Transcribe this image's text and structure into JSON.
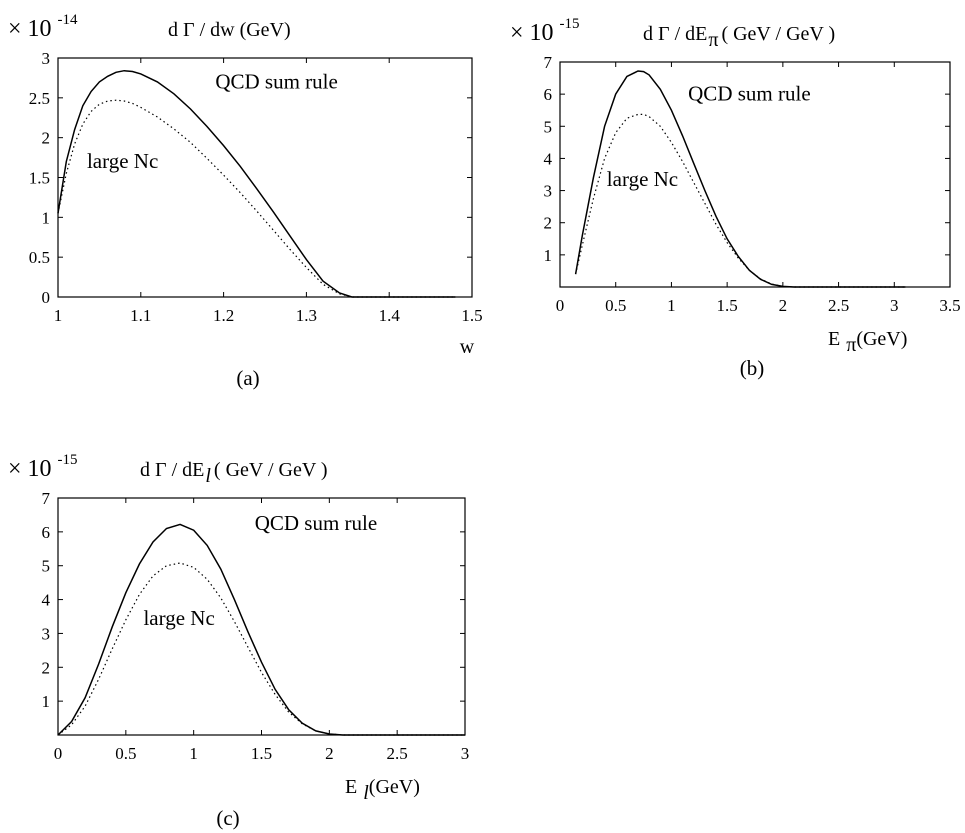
{
  "chart_data": [
    {
      "id": "a",
      "type": "line",
      "panel_label": "(a)",
      "multiplier": {
        "base": "× 10",
        "exponent": "-14"
      },
      "title": "d Γ / dw  (GeV)",
      "xlabel": "w",
      "xlabel_sub": "",
      "xlim": [
        1,
        1.5
      ],
      "ylim": [
        0,
        3
      ],
      "xticks": [
        1,
        1.1,
        1.2,
        1.3,
        1.4,
        1.5
      ],
      "xtick_labels": [
        "1",
        "1.1",
        "1.2",
        "1.3",
        "1.4",
        "1.5"
      ],
      "yticks": [
        0,
        0.5,
        1,
        1.5,
        2,
        2.5,
        3
      ],
      "ytick_labels": [
        "0",
        "0.5",
        "1",
        "1.5",
        "2",
        "2.5",
        "3"
      ],
      "series": [
        {
          "name": "QCD sum rule",
          "style": "solid",
          "x": [
            1.0,
            1.01,
            1.02,
            1.03,
            1.04,
            1.05,
            1.06,
            1.07,
            1.08,
            1.09,
            1.1,
            1.12,
            1.14,
            1.16,
            1.18,
            1.2,
            1.22,
            1.24,
            1.26,
            1.28,
            1.3,
            1.32,
            1.34,
            1.355,
            1.36,
            1.4,
            1.45,
            1.48
          ],
          "y": [
            1.05,
            1.7,
            2.1,
            2.4,
            2.58,
            2.7,
            2.77,
            2.82,
            2.84,
            2.83,
            2.8,
            2.7,
            2.55,
            2.36,
            2.14,
            1.9,
            1.64,
            1.36,
            1.07,
            0.77,
            0.47,
            0.2,
            0.05,
            0.0,
            0.0,
            0.0,
            0.0,
            0.0
          ]
        },
        {
          "name": "large Nc",
          "style": "dotted",
          "x": [
            1.0,
            1.01,
            1.02,
            1.03,
            1.04,
            1.05,
            1.06,
            1.07,
            1.08,
            1.09,
            1.1,
            1.12,
            1.14,
            1.16,
            1.18,
            1.2,
            1.22,
            1.24,
            1.26,
            1.28,
            1.3,
            1.32,
            1.34,
            1.355,
            1.36,
            1.4,
            1.45,
            1.48
          ],
          "y": [
            1.05,
            1.55,
            1.92,
            2.17,
            2.33,
            2.42,
            2.46,
            2.47,
            2.46,
            2.43,
            2.38,
            2.26,
            2.11,
            1.94,
            1.74,
            1.53,
            1.31,
            1.08,
            0.84,
            0.6,
            0.37,
            0.16,
            0.04,
            0.0,
            0.0,
            0.0,
            0.0,
            0.0
          ]
        }
      ],
      "annotations": [
        {
          "text": "QCD sum rule",
          "x": 1.19,
          "y": 2.62
        },
        {
          "text": "large Nc",
          "x": 1.035,
          "y": 1.62
        }
      ]
    },
    {
      "id": "b",
      "type": "line",
      "panel_label": "(b)",
      "multiplier": {
        "base": "× 10",
        "exponent": "-15"
      },
      "title": "d Γ / dE",
      "title_sub": "π",
      "title_suffix": " ( GeV / GeV )",
      "xlabel": "E",
      "xlabel_sub": "π",
      "xlabel_suffix": "  (GeV)",
      "xlim": [
        0,
        3.5
      ],
      "ylim": [
        0,
        7
      ],
      "xticks": [
        0,
        0.5,
        1,
        1.5,
        2,
        2.5,
        3,
        3.5
      ],
      "xtick_labels": [
        "0",
        "0.5",
        "1",
        "1.5",
        "2",
        "2.5",
        "3",
        "3.5"
      ],
      "yticks": [
        1,
        2,
        3,
        4,
        5,
        6,
        7
      ],
      "ytick_labels": [
        "1",
        "2",
        "3",
        "4",
        "5",
        "6",
        "7"
      ],
      "series": [
        {
          "name": "QCD sum rule",
          "style": "solid",
          "x": [
            0.14,
            0.2,
            0.3,
            0.4,
            0.5,
            0.6,
            0.7,
            0.75,
            0.8,
            0.9,
            1.0,
            1.1,
            1.2,
            1.3,
            1.4,
            1.5,
            1.6,
            1.7,
            1.8,
            1.9,
            2.0,
            2.1,
            2.3,
            2.6,
            3.0,
            3.1
          ],
          "y": [
            0.4,
            1.6,
            3.4,
            5.0,
            6.0,
            6.55,
            6.72,
            6.7,
            6.6,
            6.15,
            5.5,
            4.7,
            3.85,
            3.0,
            2.2,
            1.5,
            0.95,
            0.52,
            0.24,
            0.08,
            0.02,
            0.0,
            0.0,
            0.0,
            0.0,
            0.0
          ]
        },
        {
          "name": "large Nc",
          "style": "dotted",
          "x": [
            0.14,
            0.2,
            0.3,
            0.4,
            0.5,
            0.6,
            0.7,
            0.75,
            0.8,
            0.9,
            1.0,
            1.1,
            1.2,
            1.3,
            1.4,
            1.5,
            1.6,
            1.7,
            1.8,
            1.9,
            2.0,
            2.1,
            2.3,
            2.6,
            3.0,
            3.1
          ],
          "y": [
            0.4,
            1.3,
            2.75,
            4.0,
            4.8,
            5.25,
            5.37,
            5.37,
            5.3,
            5.0,
            4.5,
            3.9,
            3.25,
            2.6,
            1.95,
            1.38,
            0.9,
            0.52,
            0.25,
            0.09,
            0.02,
            0.0,
            0.0,
            0.0,
            0.0,
            0.0
          ]
        }
      ],
      "annotations": [
        {
          "text": "QCD sum rule",
          "x": 1.15,
          "y": 5.8
        },
        {
          "text": "large Nc",
          "x": 0.42,
          "y": 3.15
        }
      ]
    },
    {
      "id": "c",
      "type": "line",
      "panel_label": "(c)",
      "multiplier": {
        "base": "× 10",
        "exponent": "-15"
      },
      "title": "d Γ / dE",
      "title_sub": "l",
      "title_suffix": "  ( GeV / GeV )",
      "xlabel": "E",
      "xlabel_sub": "l",
      "xlabel_suffix": "  (GeV)",
      "xlim": [
        0,
        3
      ],
      "ylim": [
        0,
        7
      ],
      "xticks": [
        0,
        0.5,
        1,
        1.5,
        2,
        2.5,
        3
      ],
      "xtick_labels": [
        "0",
        "0.5",
        "1",
        "1.5",
        "2",
        "2.5",
        "3"
      ],
      "yticks": [
        1,
        2,
        3,
        4,
        5,
        6,
        7
      ],
      "ytick_labels": [
        "1",
        "2",
        "3",
        "4",
        "5",
        "6",
        "7"
      ],
      "series": [
        {
          "name": "QCD sum rule",
          "style": "solid",
          "x": [
            0.0,
            0.1,
            0.2,
            0.3,
            0.4,
            0.5,
            0.6,
            0.7,
            0.8,
            0.9,
            1.0,
            1.1,
            1.2,
            1.3,
            1.4,
            1.5,
            1.6,
            1.7,
            1.8,
            1.9,
            2.0,
            2.1,
            2.2,
            2.5,
            3.0
          ],
          "y": [
            0.0,
            0.4,
            1.1,
            2.1,
            3.2,
            4.2,
            5.05,
            5.7,
            6.1,
            6.22,
            6.05,
            5.6,
            4.9,
            4.0,
            3.05,
            2.15,
            1.35,
            0.75,
            0.35,
            0.12,
            0.03,
            0.0,
            0.0,
            0.0,
            0.0
          ]
        },
        {
          "name": "large Nc",
          "style": "dotted",
          "x": [
            0.0,
            0.1,
            0.2,
            0.3,
            0.4,
            0.5,
            0.6,
            0.7,
            0.8,
            0.9,
            1.0,
            1.1,
            1.2,
            1.3,
            1.4,
            1.5,
            1.6,
            1.7,
            1.8,
            1.9,
            2.0,
            2.1,
            2.2,
            2.5,
            3.0
          ],
          "y": [
            0.0,
            0.3,
            0.85,
            1.65,
            2.55,
            3.4,
            4.15,
            4.7,
            5.0,
            5.08,
            4.95,
            4.6,
            4.05,
            3.35,
            2.6,
            1.85,
            1.2,
            0.68,
            0.33,
            0.12,
            0.03,
            0.0,
            0.0,
            0.0,
            0.0
          ]
        }
      ],
      "annotations": [
        {
          "text": "QCD sum rule",
          "x": 1.45,
          "y": 6.05
        },
        {
          "text": "large Nc",
          "x": 0.63,
          "y": 3.25
        }
      ]
    }
  ]
}
